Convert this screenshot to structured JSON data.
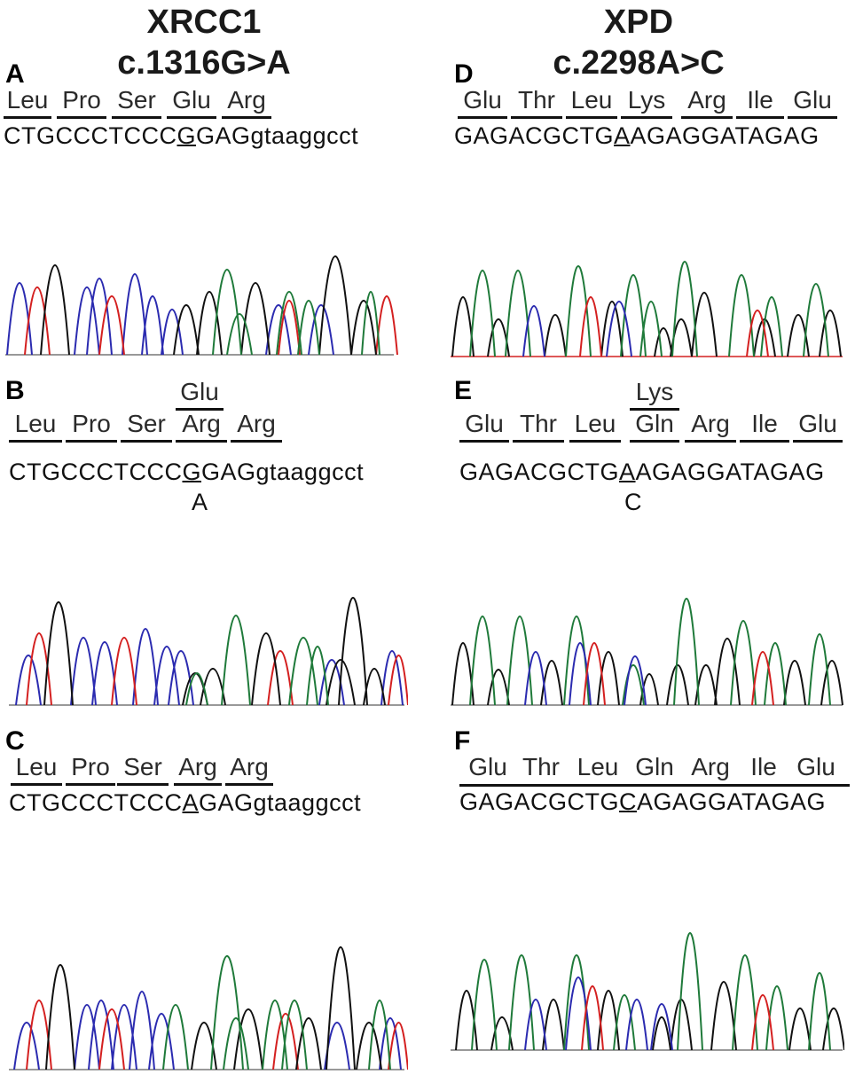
{
  "columns": [
    {
      "gene": "XRCC1",
      "variant": "c.1316G>A"
    },
    {
      "gene": "XPD",
      "variant": "c.2298A>C"
    }
  ],
  "panels": {
    "A": {
      "letter": "A",
      "codons": [
        "Leu",
        "Pro",
        "Ser",
        "Glu",
        "Arg"
      ],
      "seq_pre": "CTGCCCTCCC",
      "seq_mut": "G",
      "seq_post": "GAGgtaaggcct"
    },
    "B": {
      "letter": "B",
      "alt_codon": "Glu",
      "codons": [
        "Leu",
        "Pro",
        "Ser",
        "Arg",
        "Arg"
      ],
      "seq_pre": "CTGCCCTCCC",
      "seq_mut": "G",
      "seq_post": "GAGgtaaggcct",
      "alt_base": "A"
    },
    "C": {
      "letter": "C",
      "codons": [
        "Leu",
        "Pro",
        "Ser",
        "Arg",
        "Arg"
      ],
      "seq_pre": "CTGCCCTCCC",
      "seq_mut": "A",
      "seq_post": "GAGgtaaggcct"
    },
    "D": {
      "letter": "D",
      "codons": [
        "Glu",
        "Thr",
        "Leu",
        "Lys",
        "Arg",
        "Ile",
        "Glu"
      ],
      "seq_pre": "GAGACGCTG",
      "seq_mut": "A",
      "seq_post": "AGAGGATAGAG"
    },
    "E": {
      "letter": "E",
      "alt_codon": "Lys",
      "codons": [
        "Glu",
        "Thr",
        "Leu",
        "Gln",
        "Arg",
        "Ile",
        "Glu"
      ],
      "seq_pre": "GAGACGCTG",
      "seq_mut": "A",
      "seq_post": "AGAGGATAGAG",
      "alt_base": "C"
    },
    "F": {
      "letter": "F",
      "codons": [
        "Glu",
        "Thr",
        "Leu",
        "Gln",
        "Arg",
        "Ile",
        "Glu"
      ],
      "seq_pre": "GAGACGCTG",
      "seq_mut": "C",
      "seq_post": "AGAGGATAGAG"
    }
  },
  "colors": {
    "A_base": "#1f7a3a",
    "C_base": "#2b2bb0",
    "G_base": "#111111",
    "T_base": "#d42020",
    "text": "#111111"
  }
}
